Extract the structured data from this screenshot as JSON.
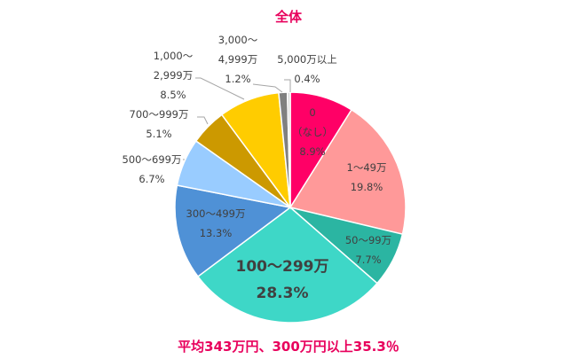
{
  "chart_data": {
    "type": "pie",
    "title": "全体",
    "subtitle": "平均343万円、300万円以上35.3％",
    "start": "top",
    "direction": "clockwise",
    "slices": [
      {
        "name": "0_none",
        "label": [
          "0",
          "（なし）"
        ],
        "value": 8.9,
        "pct": "8.9%",
        "color": "#ff0066"
      },
      {
        "name": "1-49",
        "label": [
          "1～49万"
        ],
        "value": 19.8,
        "pct": "19.8%",
        "color": "#ff9999"
      },
      {
        "name": "50-99",
        "label": [
          "50～99万"
        ],
        "value": 7.7,
        "pct": "7.7%",
        "color": "#2bb5a2"
      },
      {
        "name": "100-299",
        "label": [
          "100～299万"
        ],
        "value": 28.3,
        "pct": "28.3%",
        "color": "#3ed7c7"
      },
      {
        "name": "300-499",
        "label": [
          "300～499万"
        ],
        "value": 13.3,
        "pct": "13.3%",
        "color": "#4f91d6"
      },
      {
        "name": "500-699",
        "label": [
          "500～699万"
        ],
        "value": 6.7,
        "pct": "6.7%",
        "color": "#99ccff"
      },
      {
        "name": "700-999",
        "label": [
          "700～999万"
        ],
        "value": 5.1,
        "pct": "5.1%",
        "color": "#cc9900"
      },
      {
        "name": "1000-2999",
        "label": [
          "1,000～",
          "2,999万"
        ],
        "value": 8.5,
        "pct": "8.5%",
        "color": "#ffcc00"
      },
      {
        "name": "3000-4999",
        "label": [
          "3,000～",
          "4,999万"
        ],
        "value": 1.2,
        "pct": "1.2%",
        "color": "#808080"
      },
      {
        "name": "5000plus",
        "label": [
          "5,000万以上"
        ],
        "value": 0.4,
        "pct": "0.4%",
        "color": "#d9d9d9"
      }
    ]
  }
}
